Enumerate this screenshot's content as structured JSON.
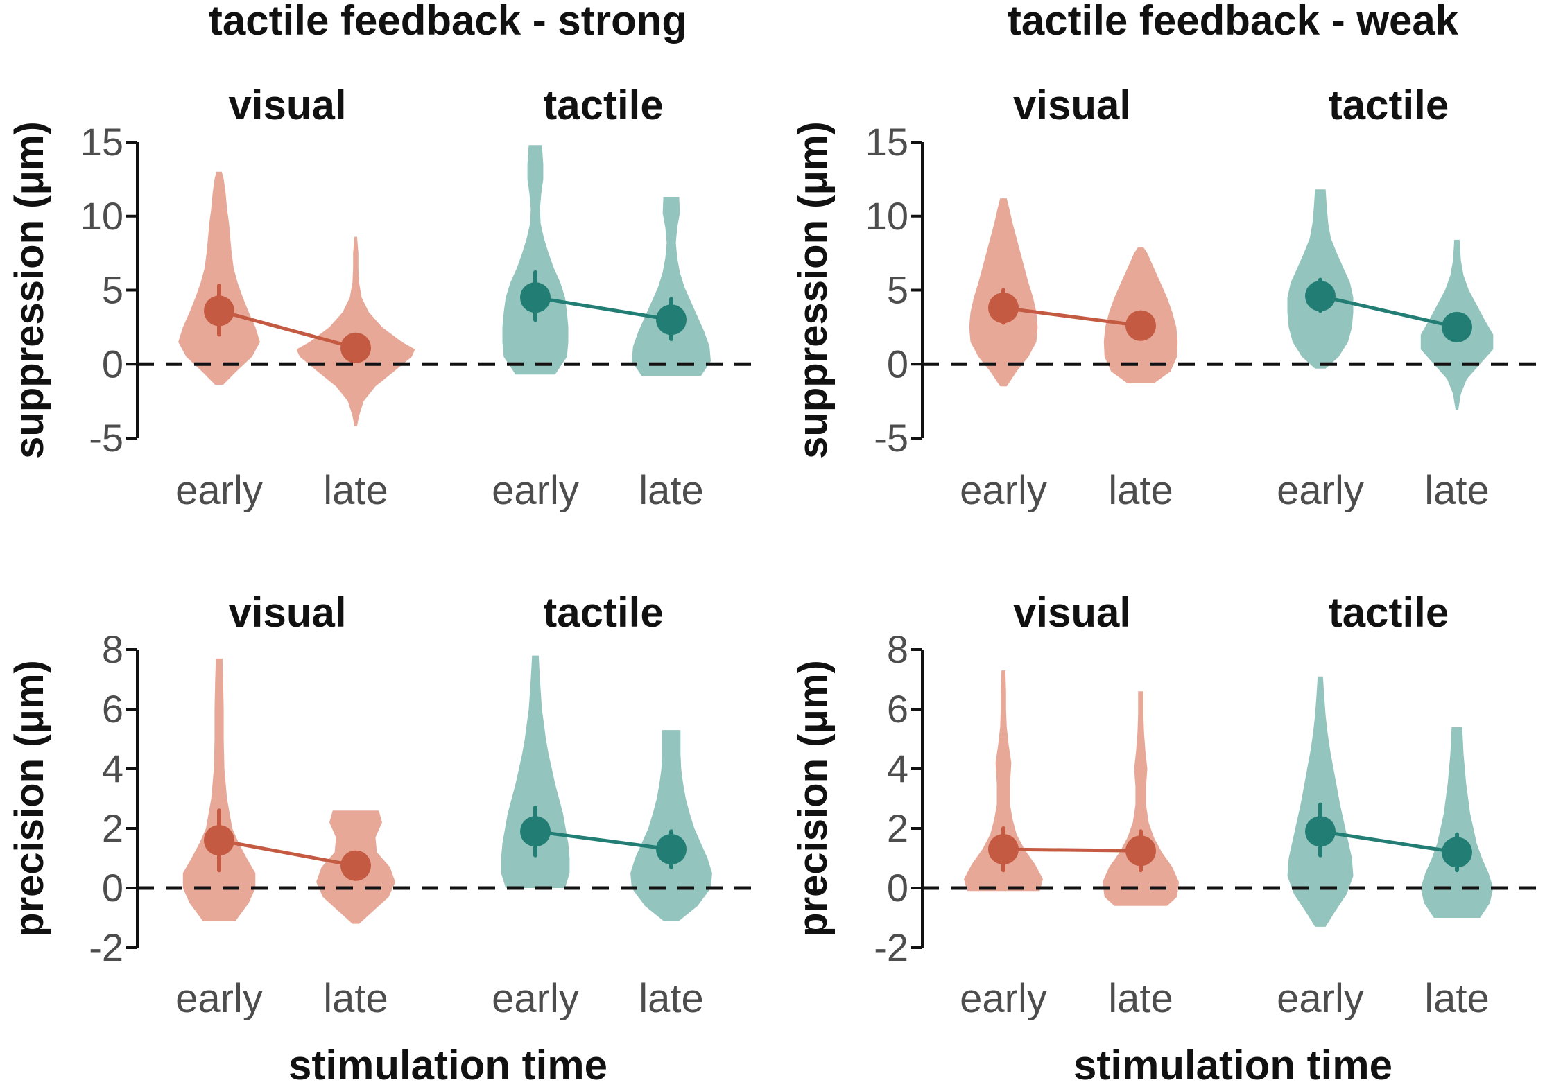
{
  "colors": {
    "visual_violin": "#e8a898",
    "visual_point": "#c45a41",
    "tactile_violin": "#93c4bd",
    "tactile_point": "#227e74",
    "axis": "#111111",
    "tick_text": "#4d4d4d",
    "reference_line": "#111111"
  },
  "column_titles": [
    "tactile feedback - strong",
    "tactile feedback - weak"
  ],
  "x_axis_title": "stimulation time",
  "chart_data": [
    {
      "type": "violin",
      "title": "tactile feedback - strong",
      "ylabel": "suppression (μm)",
      "xlabel": "",
      "ylim": [
        -5,
        15
      ],
      "yticks": [
        -5,
        0,
        5,
        10,
        15
      ],
      "ytick_labels": [
        "-5",
        "0",
        "5",
        "10",
        "15"
      ],
      "reference_line": 0,
      "facets": [
        {
          "label": "visual",
          "color_key": "visual",
          "categories": [
            "early",
            "late"
          ],
          "mean": [
            3.6,
            1.1
          ],
          "ci_low": [
            2.0,
            0.6
          ],
          "ci_high": [
            5.3,
            1.6
          ],
          "violins": [
            {
              "y": [
                -1.4,
                -0.5,
                0.5,
                1.5,
                2.5,
                3.5,
                4.5,
                5.5,
                6.5,
                7.5,
                8.5,
                9.5,
                10.5,
                11.5,
                12.5,
                13.0
              ],
              "w": [
                0.06,
                0.26,
                0.5,
                0.62,
                0.55,
                0.45,
                0.36,
                0.28,
                0.22,
                0.19,
                0.17,
                0.15,
                0.12,
                0.1,
                0.07,
                0.04
              ]
            },
            {
              "y": [
                -4.2,
                -3.5,
                -2.5,
                -1.5,
                -0.5,
                0.5,
                1.0,
                1.5,
                2.5,
                3.5,
                4.5,
                5.5,
                6.5,
                7.5,
                8.6
              ],
              "w": [
                0.02,
                0.05,
                0.12,
                0.3,
                0.58,
                0.85,
                0.9,
                0.7,
                0.4,
                0.2,
                0.09,
                0.05,
                0.04,
                0.04,
                0.02
              ]
            }
          ]
        },
        {
          "label": "tactile",
          "color_key": "tactile",
          "categories": [
            "early",
            "late"
          ],
          "mean": [
            4.5,
            3.0
          ],
          "ci_low": [
            3.0,
            1.7
          ],
          "ci_high": [
            6.2,
            4.4
          ],
          "violins": [
            {
              "y": [
                -0.7,
                0.5,
                1.5,
                2.5,
                3.5,
                4.5,
                5.5,
                6.5,
                7.5,
                8.5,
                9.5,
                10.5,
                11.5,
                12.5,
                13.5,
                14.8
              ],
              "w": [
                0.3,
                0.48,
                0.5,
                0.5,
                0.48,
                0.45,
                0.38,
                0.28,
                0.2,
                0.13,
                0.08,
                0.07,
                0.09,
                0.12,
                0.12,
                0.1
              ]
            },
            {
              "y": [
                -0.8,
                0.2,
                1.2,
                2.2,
                3.2,
                4.2,
                5.2,
                6.2,
                7.2,
                8.2,
                9.2,
                10.2,
                11.3
              ],
              "w": [
                0.45,
                0.6,
                0.58,
                0.5,
                0.4,
                0.3,
                0.2,
                0.13,
                0.09,
                0.07,
                0.09,
                0.13,
                0.12
              ]
            }
          ]
        }
      ]
    },
    {
      "type": "violin",
      "title": "tactile feedback - weak",
      "ylabel": "suppression (μm)",
      "xlabel": "",
      "ylim": [
        -5,
        15
      ],
      "yticks": [
        -5,
        0,
        5,
        10,
        15
      ],
      "ytick_labels": [
        "-5",
        "0",
        "5",
        "10",
        "15"
      ],
      "reference_line": 0,
      "facets": [
        {
          "label": "visual",
          "color_key": "visual",
          "categories": [
            "early",
            "late"
          ],
          "mean": [
            3.8,
            2.6
          ],
          "ci_low": [
            2.8,
            1.8
          ],
          "ci_high": [
            5.0,
            3.5
          ],
          "violins": [
            {
              "y": [
                -1.5,
                -0.5,
                0.5,
                1.5,
                2.5,
                3.5,
                4.5,
                5.5,
                6.5,
                7.5,
                8.5,
                9.5,
                10.5,
                11.2
              ],
              "w": [
                0.05,
                0.2,
                0.38,
                0.5,
                0.52,
                0.5,
                0.45,
                0.38,
                0.32,
                0.26,
                0.2,
                0.14,
                0.09,
                0.05
              ]
            },
            {
              "y": [
                -1.3,
                -0.5,
                0.5,
                1.5,
                2.5,
                3.5,
                4.5,
                5.5,
                6.5,
                7.5,
                7.9
              ],
              "w": [
                0.2,
                0.45,
                0.55,
                0.56,
                0.54,
                0.48,
                0.4,
                0.3,
                0.2,
                0.1,
                0.04
              ]
            }
          ]
        },
        {
          "label": "tactile",
          "color_key": "tactile",
          "categories": [
            "early",
            "late"
          ],
          "mean": [
            4.6,
            2.5
          ],
          "ci_low": [
            3.6,
            1.7
          ],
          "ci_high": [
            5.7,
            3.3
          ],
          "violins": [
            {
              "y": [
                -0.3,
                0.5,
                1.5,
                2.5,
                3.5,
                4.5,
                5.5,
                6.5,
                7.5,
                8.5,
                9.5,
                10.5,
                11.8
              ],
              "w": [
                0.08,
                0.28,
                0.42,
                0.48,
                0.5,
                0.5,
                0.45,
                0.35,
                0.25,
                0.16,
                0.12,
                0.1,
                0.08
              ]
            },
            {
              "y": [
                -3.1,
                -2.0,
                -1.0,
                0.0,
                1.0,
                2.0,
                3.0,
                4.0,
                5.0,
                6.0,
                7.0,
                8.4
              ],
              "w": [
                0.02,
                0.06,
                0.15,
                0.35,
                0.55,
                0.55,
                0.42,
                0.3,
                0.18,
                0.1,
                0.06,
                0.04
              ]
            }
          ]
        }
      ]
    },
    {
      "type": "violin",
      "title": "",
      "ylabel": "precision (μm)",
      "xlabel": "stimulation time",
      "ylim": [
        -2,
        8
      ],
      "yticks": [
        -2,
        0,
        2,
        4,
        6,
        8
      ],
      "ytick_labels": [
        "-2",
        "0",
        "2",
        "4",
        "6",
        "8"
      ],
      "reference_line": 0,
      "facets": [
        {
          "label": "visual",
          "color_key": "visual",
          "categories": [
            "early",
            "late"
          ],
          "mean": [
            1.6,
            0.75
          ],
          "ci_low": [
            0.6,
            0.4
          ],
          "ci_high": [
            2.6,
            1.1
          ],
          "violins": [
            {
              "y": [
                -1.1,
                -0.5,
                0.0,
                0.5,
                1.0,
                1.5,
                2.0,
                3.0,
                4.0,
                5.0,
                6.0,
                7.0,
                7.7
              ],
              "w": [
                0.25,
                0.45,
                0.55,
                0.55,
                0.42,
                0.3,
                0.2,
                0.12,
                0.08,
                0.07,
                0.07,
                0.06,
                0.05
              ]
            },
            {
              "y": [
                -1.2,
                -0.8,
                -0.3,
                0.2,
                0.7,
                1.2,
                1.7,
                2.2,
                2.6
              ],
              "w": [
                0.05,
                0.25,
                0.5,
                0.6,
                0.52,
                0.32,
                0.3,
                0.4,
                0.35
              ]
            }
          ]
        },
        {
          "label": "tactile",
          "color_key": "tactile",
          "categories": [
            "early",
            "late"
          ],
          "mean": [
            1.9,
            1.3
          ],
          "ci_low": [
            1.1,
            0.7
          ],
          "ci_high": [
            2.7,
            1.9
          ],
          "violins": [
            {
              "y": [
                0.0,
                0.5,
                1.0,
                1.5,
                2.0,
                2.5,
                3.0,
                3.5,
                4.0,
                4.5,
                5.0,
                5.5,
                6.0,
                7.0,
                7.8
              ],
              "w": [
                0.45,
                0.52,
                0.52,
                0.5,
                0.46,
                0.42,
                0.36,
                0.3,
                0.25,
                0.2,
                0.16,
                0.13,
                0.1,
                0.07,
                0.05
              ]
            },
            {
              "y": [
                -1.1,
                -0.6,
                0.0,
                0.5,
                1.0,
                1.5,
                2.0,
                2.5,
                3.0,
                3.5,
                4.0,
                4.5,
                5.3
              ],
              "w": [
                0.12,
                0.4,
                0.6,
                0.62,
                0.55,
                0.45,
                0.35,
                0.28,
                0.22,
                0.18,
                0.15,
                0.14,
                0.14
              ]
            }
          ]
        }
      ]
    },
    {
      "type": "violin",
      "title": "",
      "ylabel": "precision (μm)",
      "xlabel": "stimulation time",
      "ylim": [
        -2,
        8
      ],
      "yticks": [
        -2,
        0,
        2,
        4,
        6,
        8
      ],
      "ytick_labels": [
        "-2",
        "0",
        "2",
        "4",
        "6",
        "8"
      ],
      "reference_line": 0,
      "facets": [
        {
          "label": "visual",
          "color_key": "visual",
          "categories": [
            "early",
            "late"
          ],
          "mean": [
            1.3,
            1.25
          ],
          "ci_low": [
            0.6,
            0.6
          ],
          "ci_high": [
            2.0,
            1.9
          ],
          "violins": [
            {
              "y": [
                -0.1,
                0.3,
                0.8,
                1.3,
                1.8,
                2.3,
                2.8,
                3.5,
                4.2,
                4.8,
                5.4,
                6.0,
                6.6,
                7.3
              ],
              "w": [
                0.55,
                0.6,
                0.48,
                0.32,
                0.2,
                0.14,
                0.1,
                0.1,
                0.12,
                0.08,
                0.05,
                0.04,
                0.04,
                0.03
              ]
            },
            {
              "y": [
                -0.6,
                -0.3,
                0.2,
                0.7,
                1.2,
                1.7,
                2.2,
                2.8,
                3.4,
                4.0,
                4.6,
                5.2,
                5.8,
                6.6
              ],
              "w": [
                0.4,
                0.55,
                0.58,
                0.48,
                0.32,
                0.2,
                0.12,
                0.08,
                0.08,
                0.1,
                0.07,
                0.05,
                0.04,
                0.04
              ]
            }
          ]
        },
        {
          "label": "tactile",
          "color_key": "tactile",
          "categories": [
            "early",
            "late"
          ],
          "mean": [
            1.9,
            1.2
          ],
          "ci_low": [
            1.1,
            0.6
          ],
          "ci_high": [
            2.8,
            1.8
          ],
          "violins": [
            {
              "y": [
                -1.3,
                -0.8,
                -0.2,
                0.4,
                1.0,
                1.6,
                2.2,
                2.8,
                3.4,
                4.0,
                4.6,
                5.2,
                5.8,
                6.4,
                7.1
              ],
              "w": [
                0.08,
                0.22,
                0.4,
                0.5,
                0.48,
                0.42,
                0.36,
                0.3,
                0.25,
                0.2,
                0.15,
                0.11,
                0.08,
                0.06,
                0.04
              ]
            },
            {
              "y": [
                -1.0,
                -0.5,
                0.0,
                0.5,
                1.0,
                1.5,
                2.0,
                2.5,
                3.0,
                3.5,
                4.0,
                4.5,
                5.4
              ],
              "w": [
                0.35,
                0.5,
                0.55,
                0.48,
                0.38,
                0.3,
                0.25,
                0.2,
                0.17,
                0.14,
                0.12,
                0.1,
                0.08
              ]
            }
          ]
        }
      ]
    }
  ]
}
